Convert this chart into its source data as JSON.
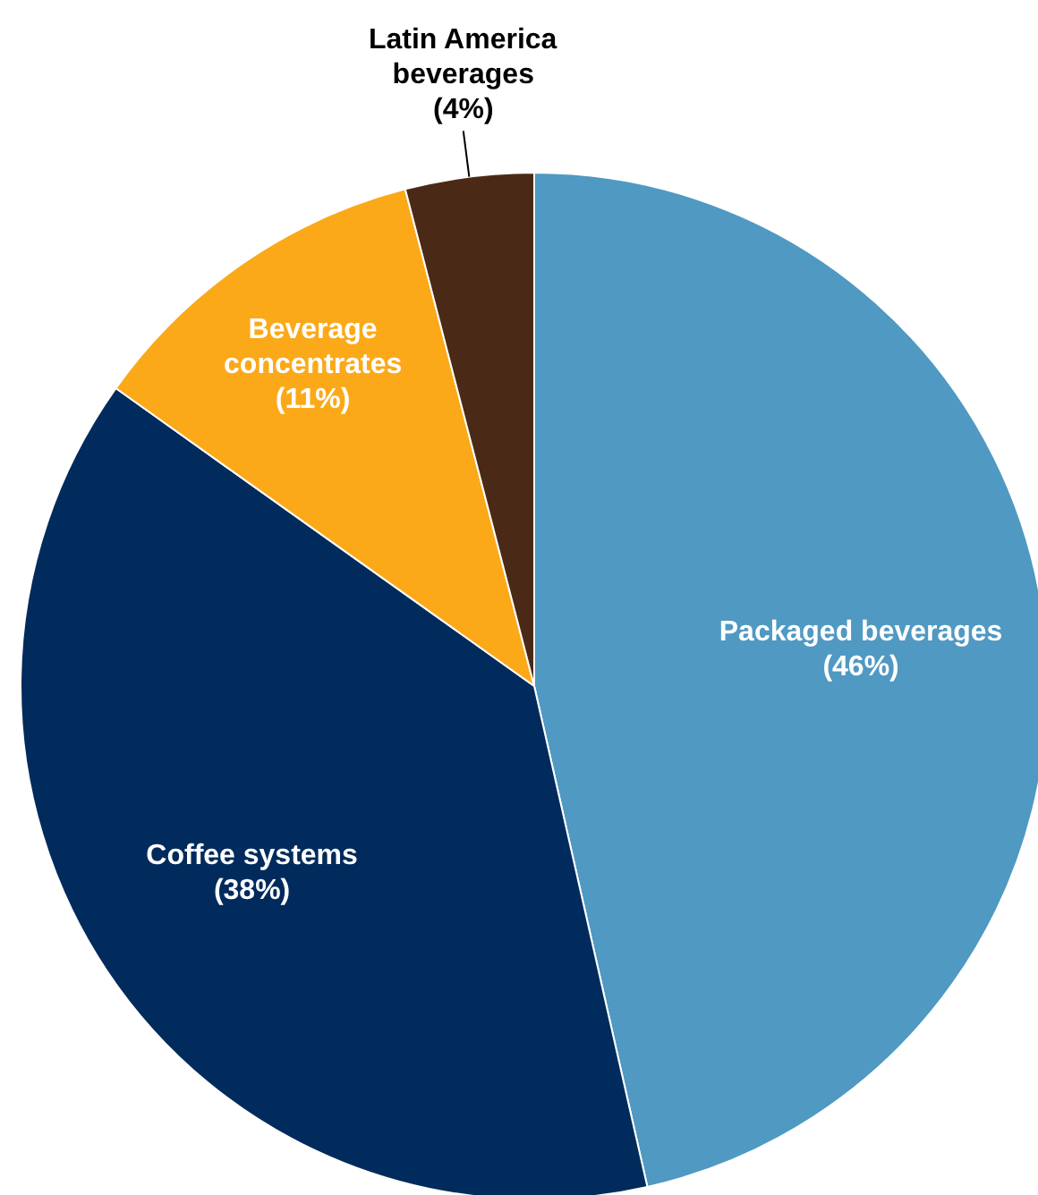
{
  "chart_data": {
    "type": "pie",
    "categories": [
      "Packaged beverages",
      "Coffee systems",
      "Beverage concentrates",
      "Latin America beverages"
    ],
    "values": [
      46,
      38,
      11,
      4
    ],
    "colors": [
      "#4f99c2",
      "#002b5c",
      "#fba919",
      "#4a2a17"
    ],
    "value_labels": [
      "(46%)",
      "(38%)",
      "(11%)",
      "(4%)"
    ]
  }
}
